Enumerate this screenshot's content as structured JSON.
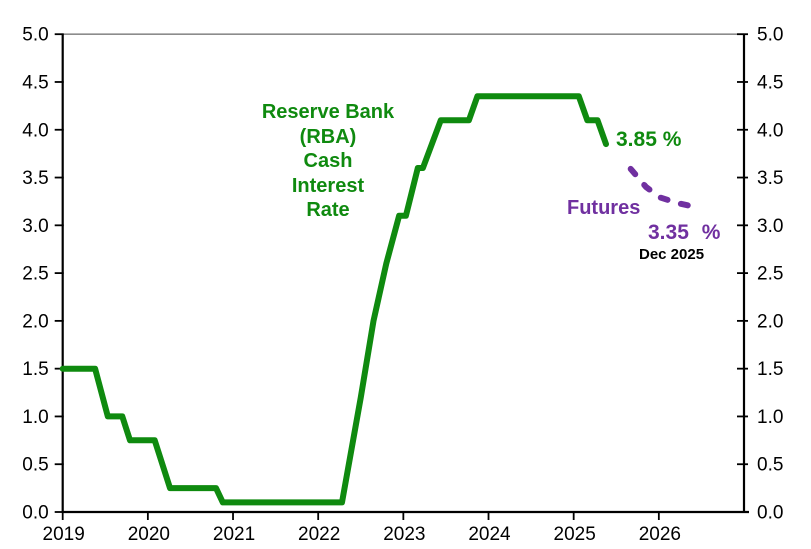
{
  "chart_data": {
    "type": "line",
    "title": "Reserve Bank (RBA) Cash Interest Rate",
    "title_lines": [
      "Reserve Bank",
      "(RBA)",
      "Cash",
      "Interest",
      "Rate"
    ],
    "xlabel": "",
    "ylabel": "",
    "xlim": [
      2019,
      2027
    ],
    "ylim": [
      0.0,
      5.0
    ],
    "x_ticks": [
      2019,
      2020,
      2021,
      2022,
      2023,
      2024,
      2025,
      2026
    ],
    "y_ticks": [
      0.0,
      0.5,
      1.0,
      1.5,
      2.0,
      2.5,
      3.0,
      3.5,
      4.0,
      4.5,
      5.0
    ],
    "y_axis_sides": "both",
    "grid": false,
    "legend": "none (inline text labels)",
    "colors": {
      "rba_line": "#0f8a0f",
      "futures_line": "#7030a0",
      "axis": "#000000",
      "top_border": "#8c8c8c",
      "background": "#ffffff"
    },
    "series": [
      {
        "name": "RBA Cash Interest Rate",
        "color": "#0f8a0f",
        "line_style": "solid",
        "line_width": 6,
        "points": [
          [
            2019.0,
            1.5
          ],
          [
            2019.38,
            1.5
          ],
          [
            2019.53,
            1.0
          ],
          [
            2019.7,
            1.0
          ],
          [
            2019.79,
            0.75
          ],
          [
            2020.08,
            0.75
          ],
          [
            2020.26,
            0.25
          ],
          [
            2020.8,
            0.25
          ],
          [
            2020.88,
            0.1
          ],
          [
            2022.28,
            0.1
          ],
          [
            2022.5,
            1.2
          ],
          [
            2022.65,
            2.0
          ],
          [
            2022.8,
            2.6
          ],
          [
            2022.95,
            3.1
          ],
          [
            2023.03,
            3.1
          ],
          [
            2023.17,
            3.6
          ],
          [
            2023.23,
            3.6
          ],
          [
            2023.44,
            4.1
          ],
          [
            2023.77,
            4.1
          ],
          [
            2023.87,
            4.35
          ],
          [
            2025.06,
            4.35
          ],
          [
            2025.16,
            4.1
          ],
          [
            2025.28,
            4.1
          ],
          [
            2025.38,
            3.85
          ]
        ]
      },
      {
        "name": "Futures",
        "color": "#7030a0",
        "line_style": "dashed",
        "line_width": 6,
        "points": [
          [
            2025.67,
            3.59
          ],
          [
            2025.85,
            3.4
          ],
          [
            2026.02,
            3.29
          ],
          [
            2026.23,
            3.23
          ],
          [
            2026.49,
            3.18
          ]
        ]
      }
    ],
    "annotations": {
      "current_rate": {
        "text": "3.85 %",
        "color": "#0f8a0f",
        "value": 3.85
      },
      "futures_label": {
        "text": "Futures",
        "color": "#7030a0"
      },
      "futures_rate": {
        "text": "3.35 %",
        "color": "#7030a0",
        "value": 3.35
      },
      "futures_date": {
        "text": "Dec 2025",
        "color": "#000000"
      }
    }
  }
}
